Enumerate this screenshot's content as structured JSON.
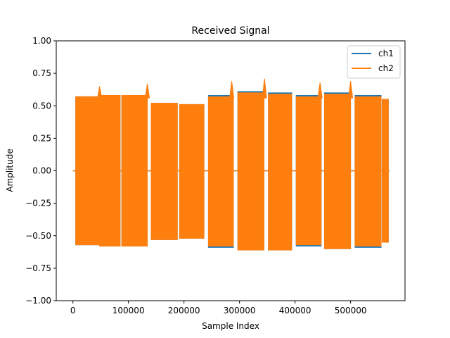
{
  "chart_data": {
    "type": "line",
    "title": "Received Signal",
    "xlabel": "Sample Index",
    "ylabel": "Amplitude",
    "xlim": [
      -30000,
      598000
    ],
    "ylim": [
      -1.0,
      1.0
    ],
    "x_ticks": [
      0,
      100000,
      200000,
      300000,
      400000,
      500000
    ],
    "x_tick_labels": [
      "0",
      "100000",
      "200000",
      "300000",
      "400000",
      "500000"
    ],
    "y_ticks": [
      -1.0,
      -0.75,
      -0.5,
      -0.25,
      0.0,
      0.25,
      0.5,
      0.75,
      1.0
    ],
    "y_tick_labels": [
      "−1.00",
      "−0.75",
      "−0.50",
      "−0.25",
      "0.00",
      "0.25",
      "0.50",
      "0.75",
      "1.00"
    ],
    "grid": false,
    "legend_position": "upper right",
    "series": [
      {
        "name": "ch1",
        "color": "#1f77b4",
        "bursts": [
          {
            "start": 5000,
            "end": 48000,
            "high": 0.57,
            "low": -0.57
          },
          {
            "start": 48000,
            "end": 85000,
            "high": 0.58,
            "low": -0.58
          },
          {
            "start": 88000,
            "end": 134000,
            "high": 0.58,
            "low": -0.58
          },
          {
            "start": 141000,
            "end": 188000,
            "high": 0.52,
            "low": -0.53
          },
          {
            "start": 192000,
            "end": 236000,
            "high": 0.51,
            "low": -0.52
          },
          {
            "start": 244000,
            "end": 289000,
            "high": 0.58,
            "low": -0.59
          },
          {
            "start": 297000,
            "end": 344000,
            "high": 0.61,
            "low": -0.61
          },
          {
            "start": 352000,
            "end": 394000,
            "high": 0.6,
            "low": -0.61
          },
          {
            "start": 402000,
            "end": 447000,
            "high": 0.58,
            "low": -0.58
          },
          {
            "start": 453000,
            "end": 500000,
            "high": 0.6,
            "low": -0.6
          },
          {
            "start": 508000,
            "end": 555000,
            "high": 0.58,
            "low": -0.59
          },
          {
            "start": 557000,
            "end": 568000,
            "high": 0.55,
            "low": -0.55
          }
        ]
      },
      {
        "name": "ch2",
        "color": "#ff7f0e",
        "bursts": [
          {
            "start": 5000,
            "end": 48000,
            "high": 0.57,
            "low": -0.57
          },
          {
            "start": 48000,
            "end": 85000,
            "high": 0.58,
            "low": -0.58
          },
          {
            "start": 88000,
            "end": 134000,
            "high": 0.58,
            "low": -0.58
          },
          {
            "start": 141000,
            "end": 188000,
            "high": 0.52,
            "low": -0.53
          },
          {
            "start": 192000,
            "end": 236000,
            "high": 0.51,
            "low": -0.52
          },
          {
            "start": 244000,
            "end": 289000,
            "high": 0.57,
            "low": -0.58
          },
          {
            "start": 297000,
            "end": 344000,
            "high": 0.6,
            "low": -0.61
          },
          {
            "start": 352000,
            "end": 394000,
            "high": 0.59,
            "low": -0.61
          },
          {
            "start": 402000,
            "end": 447000,
            "high": 0.57,
            "low": -0.57
          },
          {
            "start": 453000,
            "end": 500000,
            "high": 0.59,
            "low": -0.6
          },
          {
            "start": 508000,
            "end": 555000,
            "high": 0.57,
            "low": -0.58
          },
          {
            "start": 557000,
            "end": 568000,
            "high": 0.55,
            "low": -0.55
          }
        ],
        "spikes": [
          {
            "x": 48000,
            "value": 0.65
          },
          {
            "x": 134000,
            "value": 0.67
          },
          {
            "x": 286000,
            "value": 0.69
          },
          {
            "x": 345000,
            "value": 0.71
          },
          {
            "x": 445000,
            "value": 0.68
          },
          {
            "x": 500000,
            "value": 0.69
          }
        ]
      }
    ]
  }
}
